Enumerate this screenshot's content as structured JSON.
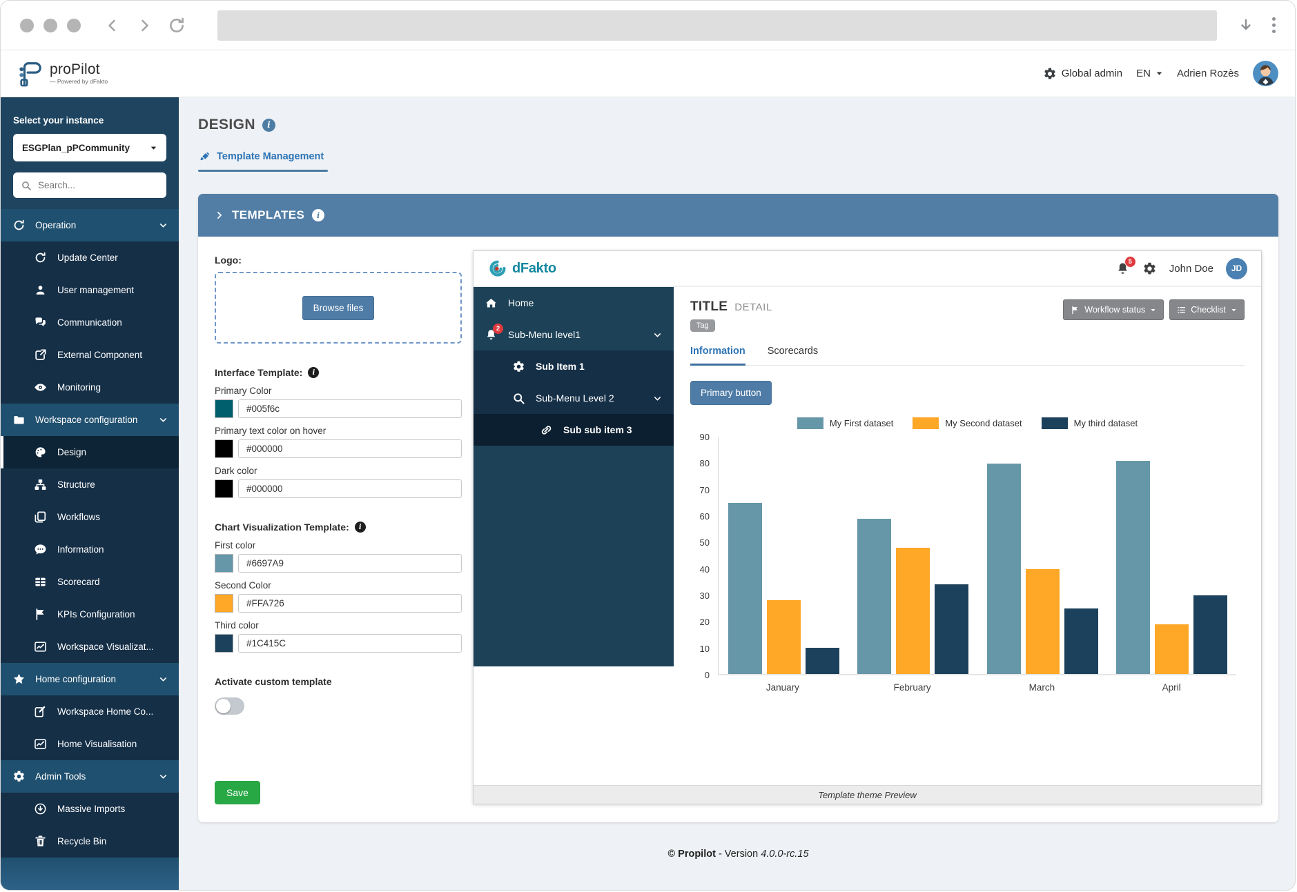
{
  "colors": {
    "accent_steel_blue": "#527EA6",
    "sidebar_navy": "#1E4460",
    "save_green": "#28A745",
    "badge_red": "#E0393E",
    "tab_blue": "#2D74B5"
  },
  "app_header": {
    "brand": "proPilot",
    "powered_by": "— Powered by dFakto",
    "role": "Global admin",
    "language": "EN",
    "user": "Adrien Rozès"
  },
  "sidebar": {
    "instance_label": "Select your instance",
    "instance_value": "ESGPlan_pPCommunity",
    "search_placeholder": "Search...",
    "operation": "Operation",
    "update_center": "Update Center",
    "user_management": "User management",
    "communication": "Communication",
    "external_component": "External Component",
    "monitoring": "Monitoring",
    "workspace_configuration": "Workspace configuration",
    "design": "Design",
    "structure": "Structure",
    "workflows": "Workflows",
    "information": "Information",
    "scorecard": "Scorecard",
    "kpis_configuration": "KPIs Configuration",
    "workspace_visualization": "Workspace Visualizat...",
    "home_configuration": "Home configuration",
    "workspace_home": "Workspace Home Co...",
    "home_visualisation": "Home Visualisation",
    "admin_tools": "Admin Tools",
    "massive_imports": "Massive Imports",
    "recycle_bin": "Recycle Bin"
  },
  "design_page": {
    "title": "DESIGN",
    "tab": "Template Management",
    "templates_title": "TEMPLATES",
    "footer_brand": "© Propilot",
    "footer_mid": "- Version",
    "footer_version": "4.0.0-rc.15"
  },
  "form": {
    "logo_label": "Logo:",
    "browse_files": "Browse files",
    "interface_template_label": "Interface Template:",
    "primary_color_label": "Primary Color",
    "primary_color_value": "#005f6c",
    "primary_text_hover_label": "Primary text color on hover",
    "primary_text_hover_value": "#000000",
    "dark_color_label": "Dark color",
    "dark_color_value": "#000000",
    "chart_template_label": "Chart Visualization Template:",
    "first_color_label": "First color",
    "first_color_value": "#6697A9",
    "second_color_label": "Second Color",
    "second_color_value": "#FFA726",
    "third_color_label": "Third color",
    "third_color_value": "#1C415C",
    "activate_custom_template_label": "Activate custom template",
    "save_label": "Save"
  },
  "preview": {
    "brand": "dFakto",
    "bell_badge": "5",
    "user_name": "John Doe",
    "user_initials": "JD",
    "menu": {
      "home": "Home",
      "submenu1": "Sub-Menu level1",
      "submenu1_badge": "2",
      "sub_item1": "Sub Item 1",
      "submenu2": "Sub-Menu Level 2",
      "sub_sub_item3": "Sub sub item 3"
    },
    "title": "TITLE",
    "detail": "DETAIL",
    "tag": "Tag",
    "workflow_status": "Workflow status",
    "checklist": "Checklist",
    "tabs": {
      "information": "Information",
      "scorecards": "Scorecards"
    },
    "primary_button": "Primary button",
    "caption": "Template theme Preview"
  },
  "chart_data": {
    "type": "bar",
    "categories": [
      "January",
      "February",
      "March",
      "April"
    ],
    "series": [
      {
        "name": "My First dataset",
        "color": "#6697A9",
        "values": [
          65,
          59,
          80,
          81
        ]
      },
      {
        "name": "My Second dataset",
        "color": "#FFA726",
        "values": [
          28,
          48,
          40,
          19
        ]
      },
      {
        "name": "My third dataset",
        "color": "#1C415C",
        "values": [
          10,
          34,
          25,
          30
        ]
      }
    ],
    "ylim": [
      0,
      90
    ],
    "ytick_step": 10,
    "grid": false,
    "legend_position": "top",
    "xlabel": "",
    "ylabel": ""
  }
}
